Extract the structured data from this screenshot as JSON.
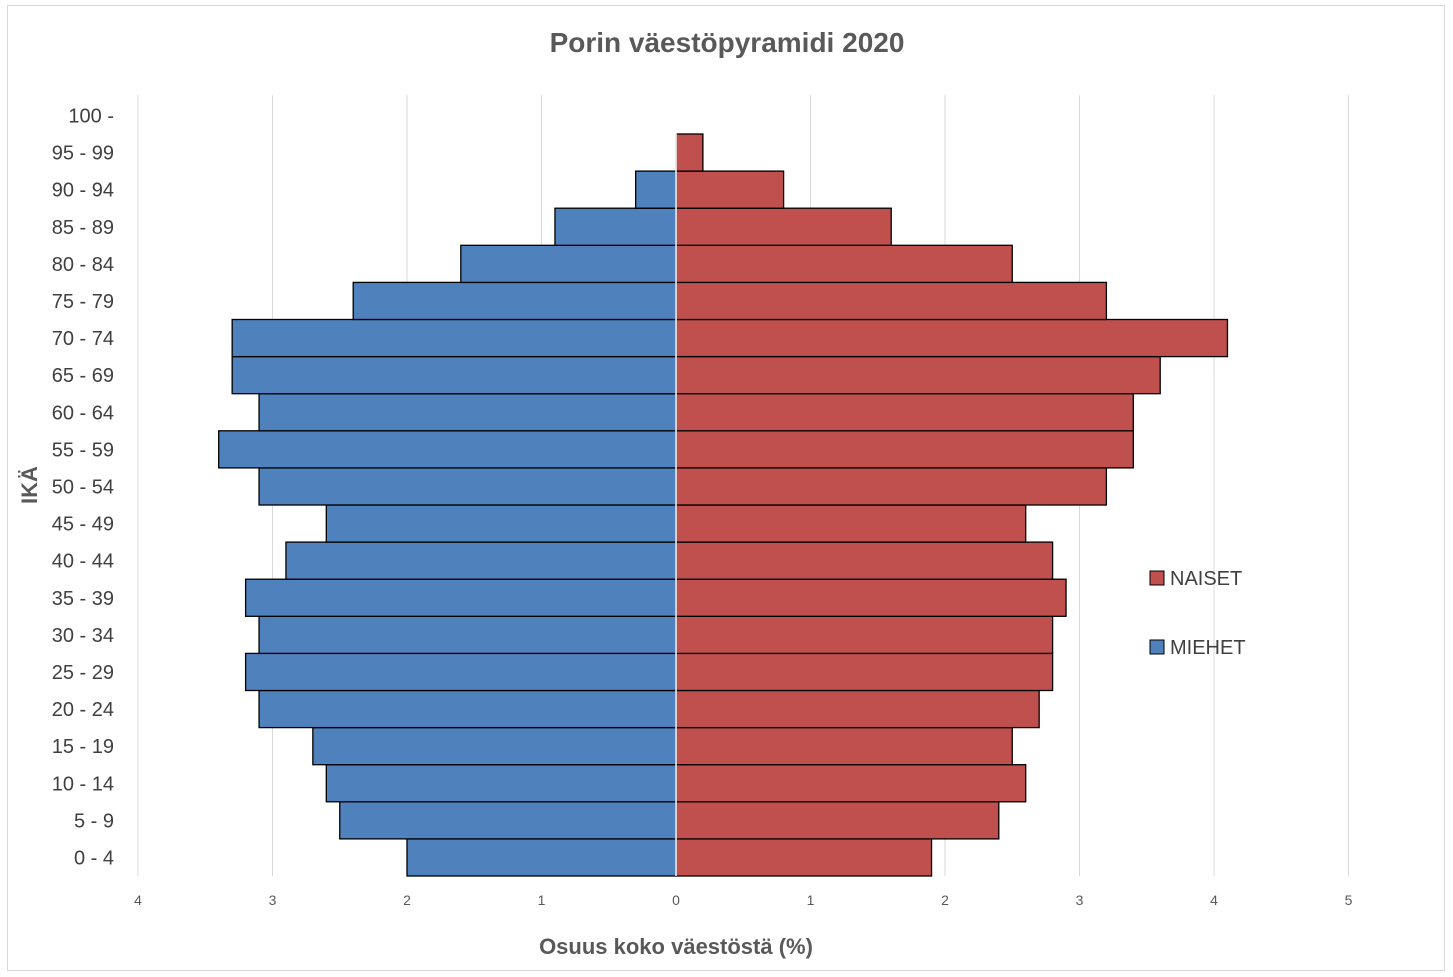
{
  "chart_data": {
    "type": "bar",
    "orientation": "horizontal",
    "title": "Porin väestöpyramidi 2020",
    "xlabel": "Osuus koko väestöstä (%)",
    "ylabel": "IKÄ",
    "xlim": [
      -4,
      5
    ],
    "xticks": [
      {
        "value": -4,
        "label": "4"
      },
      {
        "value": -3,
        "label": "3"
      },
      {
        "value": -2,
        "label": "2"
      },
      {
        "value": -1,
        "label": "1"
      },
      {
        "value": 0,
        "label": "0"
      },
      {
        "value": 1,
        "label": "1"
      },
      {
        "value": 2,
        "label": "2"
      },
      {
        "value": 3,
        "label": "3"
      },
      {
        "value": 4,
        "label": "4"
      },
      {
        "value": 5,
        "label": "5"
      }
    ],
    "categories": [
      "0 - 4",
      "5 - 9",
      "10 - 14",
      "15 - 19",
      "20 - 24",
      "25 - 29",
      "30 - 34",
      "35 - 39",
      "40 - 44",
      "45 - 49",
      "50 - 54",
      "55 - 59",
      "60 - 64",
      "65 - 69",
      "70 - 74",
      "75 - 79",
      "80 - 84",
      "85 - 89",
      "90 - 94",
      "95 - 99",
      "100 -"
    ],
    "series": [
      {
        "name": "MIEHET",
        "color": "#4f81bd",
        "values": [
          2.0,
          2.5,
          2.6,
          2.7,
          3.1,
          3.2,
          3.1,
          3.2,
          2.9,
          2.6,
          3.1,
          3.4,
          3.1,
          3.3,
          3.3,
          2.4,
          1.6,
          0.9,
          0.3,
          0,
          0
        ]
      },
      {
        "name": "NAISET",
        "color": "#c0504d",
        "values": [
          1.9,
          2.4,
          2.6,
          2.5,
          2.7,
          2.8,
          2.8,
          2.9,
          2.8,
          2.6,
          3.2,
          3.4,
          3.4,
          3.6,
          4.1,
          3.2,
          2.5,
          1.6,
          0.8,
          0.2,
          0
        ]
      }
    ],
    "legend": {
      "position": "right",
      "order": [
        "NAISET",
        "MIEHET"
      ]
    },
    "grid": true
  }
}
